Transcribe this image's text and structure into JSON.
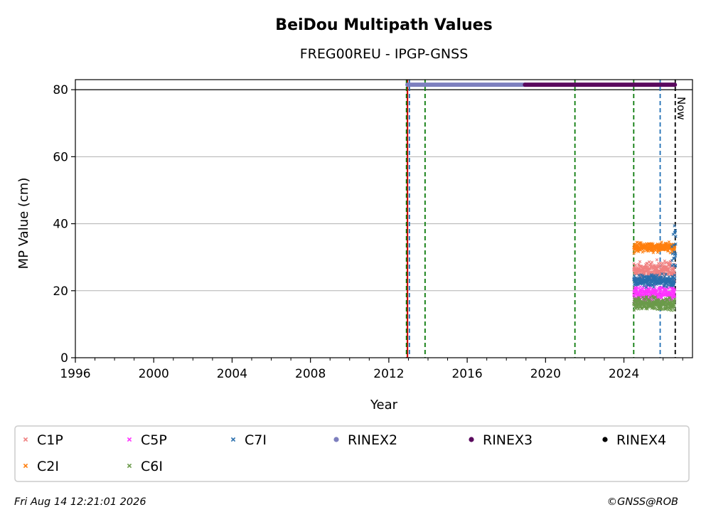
{
  "chart_data": {
    "type": "scatter",
    "title": "BeiDou Multipath Values",
    "subtitle": "FREG00REU - IPGP-GNSS",
    "xlabel": "Year",
    "ylabel": "MP Value (cm)",
    "xlim": [
      1996,
      2027.5
    ],
    "ylim": [
      0,
      83
    ],
    "x_ticks": [
      "1996",
      "2000",
      "2004",
      "2008",
      "2012",
      "2016",
      "2020",
      "2024"
    ],
    "y_ticks": [
      "0",
      "20",
      "40",
      "60",
      "80"
    ],
    "grid": "horizontal",
    "now_label": "Now",
    "footer_left": "Fri Aug 14 12:21:01 2026",
    "footer_right": "©GNSS@ROB",
    "legend_position": "bottom",
    "series": [
      {
        "name": "C1P",
        "color": "#f08080",
        "marker": "x",
        "x_range": [
          2024.5,
          2026.6
        ],
        "mean": 26,
        "spread": 1.5
      },
      {
        "name": "C2I",
        "color": "#ff7f0e",
        "marker": "x",
        "x_range": [
          2024.5,
          2026.6
        ],
        "mean": 33,
        "spread": 0.8
      },
      {
        "name": "C5P",
        "color": "#ff33ff",
        "marker": "x",
        "x_range": [
          2024.5,
          2026.6
        ],
        "mean": 19,
        "spread": 1.5
      },
      {
        "name": "C6I",
        "color": "#6b9a4a",
        "marker": "x",
        "x_range": [
          2024.5,
          2026.6
        ],
        "mean": 16,
        "spread": 1.2
      },
      {
        "name": "C7I",
        "color": "#2a6fad",
        "marker": "x",
        "x_range": [
          2024.5,
          2026.6
        ],
        "mean": 23,
        "spread": 1.0
      }
    ],
    "rinex_bars": [
      {
        "name": "RINEX2",
        "color": "#7d7fbe",
        "x_range": [
          2012.95,
          2018.95
        ],
        "y": 81.5
      },
      {
        "name": "RINEX3",
        "color": "#5b0a5e",
        "x_range": [
          2018.95,
          2026.6
        ],
        "y": 81.5
      },
      {
        "name": "RINEX4",
        "color": "#000000",
        "x_range": [],
        "y": 81.5
      }
    ],
    "vertical_lines": [
      {
        "x": 2012.95,
        "color": "#d00000",
        "style": "solid"
      },
      {
        "x": 2013.05,
        "color": "#1f6fb5",
        "style": "dashed"
      },
      {
        "x": 2012.9,
        "color": "#0a7a0a",
        "style": "dashed"
      },
      {
        "x": 2013.85,
        "color": "#0a7a0a",
        "style": "dashed"
      },
      {
        "x": 2021.5,
        "color": "#0a7a0a",
        "style": "dashed"
      },
      {
        "x": 2024.5,
        "color": "#0a7a0a",
        "style": "dashed"
      },
      {
        "x": 2025.85,
        "color": "#1f6fb5",
        "style": "dashed"
      },
      {
        "x": 2026.62,
        "color": "#000000",
        "style": "dashed"
      }
    ],
    "legend": [
      {
        "name": "C1P",
        "color": "#f08080",
        "marker": "x"
      },
      {
        "name": "C5P",
        "color": "#ff33ff",
        "marker": "x"
      },
      {
        "name": "C7I",
        "color": "#2a6fad",
        "marker": "x"
      },
      {
        "name": "RINEX2",
        "color": "#7d7fbe",
        "marker": "dot"
      },
      {
        "name": "RINEX3",
        "color": "#5b0a5e",
        "marker": "dot"
      },
      {
        "name": "RINEX4",
        "color": "#000000",
        "marker": "dot"
      },
      {
        "name": "C2I",
        "color": "#ff7f0e",
        "marker": "x"
      },
      {
        "name": "C6I",
        "color": "#6b9a4a",
        "marker": "x"
      }
    ]
  }
}
